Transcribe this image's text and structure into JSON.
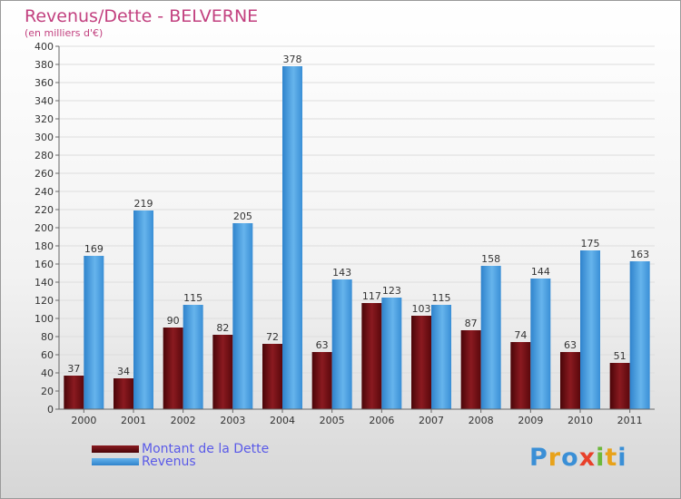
{
  "header": {
    "title": "Revenus/Dette - BELVERNE",
    "subtitle": "(en milliers d'€)"
  },
  "colors": {
    "debt": "#6e0a0e",
    "debt_light": "#b8333a",
    "revenue": "#3a8fd6",
    "revenue_light": "#6cb8ee",
    "title": "#c2407f",
    "legend_text": "#5a5ae8"
  },
  "chart_data": {
    "type": "bar",
    "categories": [
      "2000",
      "2001",
      "2002",
      "2003",
      "2004",
      "2005",
      "2006",
      "2007",
      "2008",
      "2009",
      "2010",
      "2011"
    ],
    "series": [
      {
        "name": "Montant de la Dette",
        "values": [
          37,
          34,
          90,
          82,
          72,
          63,
          117,
          103,
          87,
          74,
          63,
          51
        ]
      },
      {
        "name": "Revenus",
        "values": [
          169,
          219,
          115,
          205,
          378,
          143,
          123,
          115,
          158,
          144,
          175,
          163
        ]
      }
    ],
    "ylim": [
      0,
      400
    ],
    "ytick_step": 20,
    "grid": true,
    "legend_position": "bottom-left"
  },
  "legend": {
    "debt_label": "Montant de la Dette",
    "revenue_label": "Revenus"
  },
  "logo": {
    "text": "Proxiti"
  }
}
